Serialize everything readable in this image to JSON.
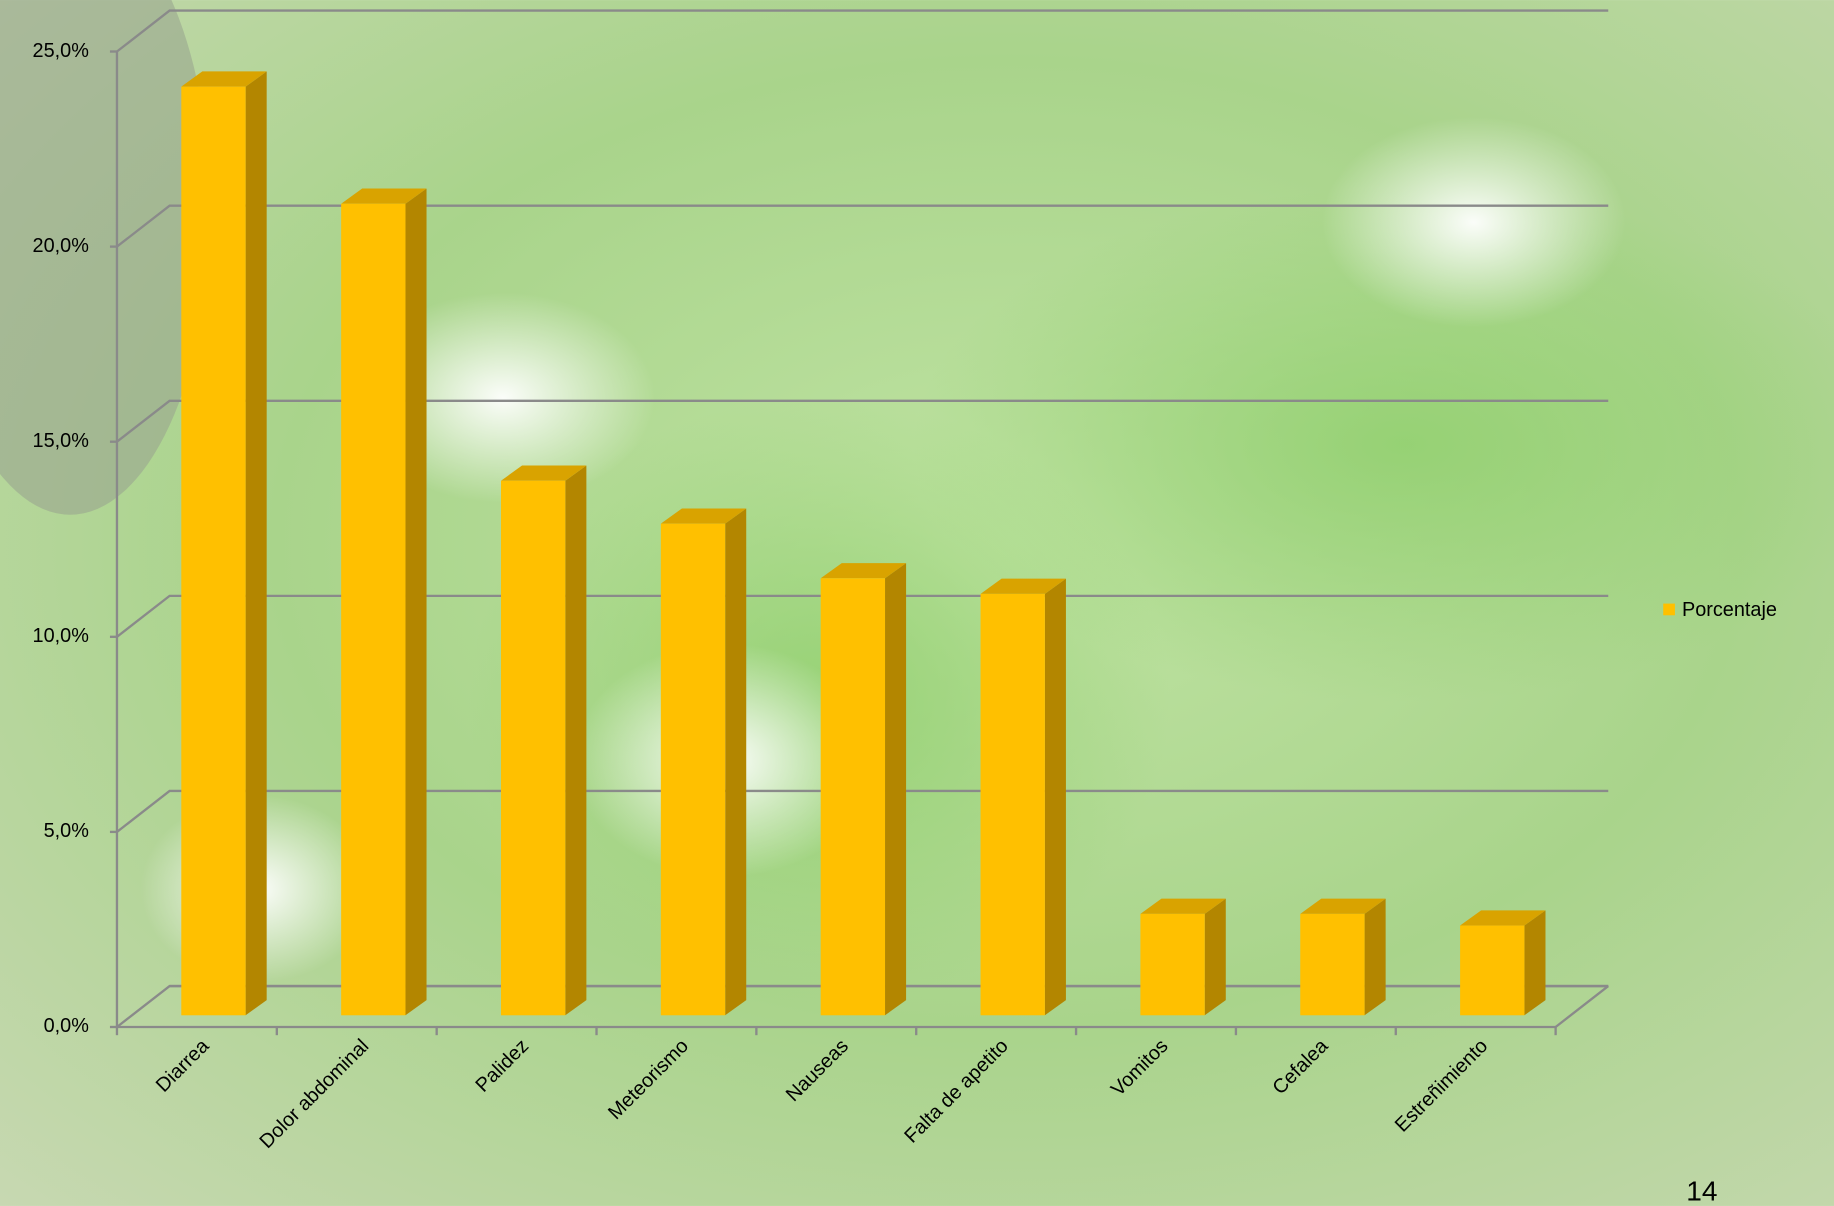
{
  "chart_data": {
    "type": "bar3d",
    "categories": [
      "Diarrea",
      "Dolor abdominal",
      "Palidez",
      "Meteorismo",
      "Nauseas",
      "Falta de apetito",
      "Vomitos",
      "Cefalea",
      "Estreñimiento"
    ],
    "series": [
      {
        "name": "Porcentaje",
        "color": "#ffc000",
        "values": [
          23.8,
          20.8,
          13.7,
          12.6,
          11.2,
          10.8,
          2.6,
          2.6,
          2.3
        ]
      }
    ],
    "ylim": [
      0,
      25
    ],
    "yticks": [
      {
        "value": 0,
        "label": "0,0%"
      },
      {
        "value": 5,
        "label": "5,0%"
      },
      {
        "value": 10,
        "label": "10,0%"
      },
      {
        "value": 15,
        "label": "15,0%"
      },
      {
        "value": 20,
        "label": "20,0%"
      },
      {
        "value": 25,
        "label": "25,0%"
      }
    ],
    "grid": true,
    "legend": "right"
  },
  "page_number": "14"
}
